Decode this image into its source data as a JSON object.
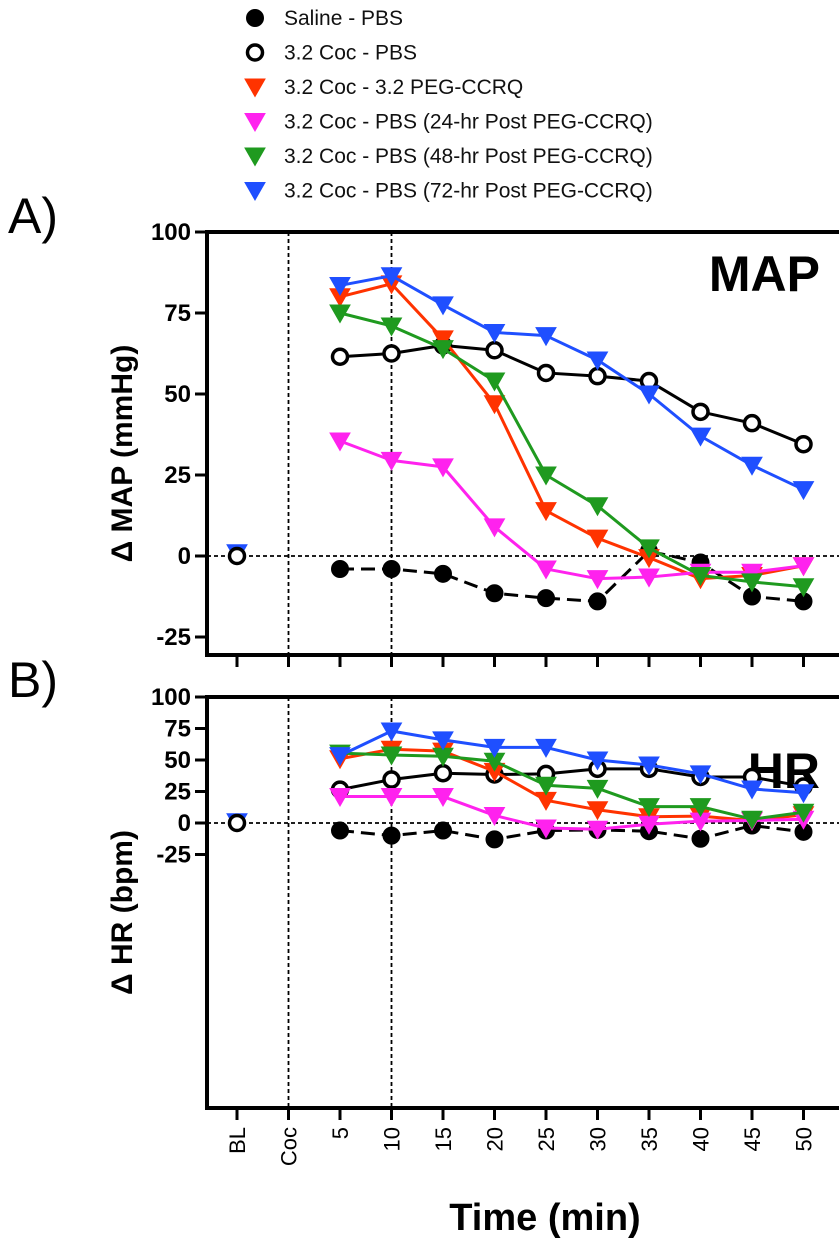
{
  "legend": [
    {
      "label": "Saline - PBS",
      "marker": "circle-filled",
      "color": "#000000"
    },
    {
      "label": "3.2 Coc - PBS",
      "marker": "circle-open",
      "color": "#000000"
    },
    {
      "label": "3.2 Coc - 3.2 PEG-CCRQ",
      "marker": "triangle-down",
      "color": "#ff3300"
    },
    {
      "label": "3.2 Coc - PBS (24-hr Post PEG-CCRQ)",
      "marker": "triangle-down",
      "color": "#ff22ee"
    },
    {
      "label": "3.2 Coc - PBS (48-hr Post PEG-CCRQ)",
      "marker": "triangle-down",
      "color": "#1f9a1f"
    },
    {
      "label": "3.2 Coc - PBS (72-hr Post PEG-CCRQ)",
      "marker": "triangle-down",
      "color": "#1f4fff"
    }
  ],
  "x_axis": {
    "title": "Time (min)",
    "tick_labels": [
      "BL",
      "Coc",
      "5",
      "10",
      "15",
      "20",
      "25",
      "30",
      "35",
      "40",
      "45",
      "50"
    ]
  },
  "chart_data": [
    {
      "type": "line",
      "panel_letter": "A)",
      "title": "MAP",
      "ylabel": "Δ MAP (mmHg)",
      "ylim": [
        -30,
        100
      ],
      "yticks": [
        -25,
        0,
        25,
        50,
        75,
        100
      ],
      "ytick_labels": [
        "-25",
        "0",
        "25",
        "50",
        "75",
        "100"
      ],
      "categories": [
        "BL",
        "Coc",
        "5",
        "10",
        "15",
        "20",
        "25",
        "30",
        "35",
        "40",
        "45",
        "50"
      ],
      "reference_lines": {
        "y": 0,
        "x": [
          "Coc",
          "10"
        ]
      },
      "baseline": {
        "open_circle": 0,
        "blue_triangle": 1
      },
      "series": [
        {
          "name": "Saline - PBS",
          "color": "#000000",
          "marker": "circle-filled",
          "dashed": true,
          "x": [
            "5",
            "10",
            "15",
            "20",
            "25",
            "30",
            "35",
            "40",
            "45",
            "50"
          ],
          "values": [
            -4,
            -4,
            -5.5,
            -11.5,
            -13,
            -14,
            1.5,
            -2,
            -12.5,
            -14
          ]
        },
        {
          "name": "3.2 Coc - PBS",
          "color": "#000000",
          "marker": "circle-open",
          "dashed": false,
          "x": [
            "5",
            "10",
            "15",
            "20",
            "25",
            "30",
            "35",
            "40",
            "45",
            "50"
          ],
          "values": [
            61.5,
            62.5,
            65,
            63.5,
            56.5,
            55.5,
            54,
            44.5,
            41,
            34.5
          ]
        },
        {
          "name": "3.2 Coc - 3.2 PEG-CCRQ",
          "color": "#ff3300",
          "marker": "triangle-down",
          "dashed": false,
          "x": [
            "5",
            "10",
            "15",
            "20",
            "25",
            "30",
            "35",
            "40",
            "45",
            "50"
          ],
          "values": [
            80,
            84,
            67,
            47,
            14,
            5.5,
            -0.5,
            -7,
            -6,
            -3
          ]
        },
        {
          "name": "3.2 Coc - PBS (24-hr Post PEG-CCRQ)",
          "color": "#ff22ee",
          "marker": "triangle-down",
          "dashed": false,
          "x": [
            "5",
            "10",
            "15",
            "20",
            "25",
            "30",
            "35",
            "40",
            "45",
            "50"
          ],
          "values": [
            35.5,
            29.5,
            27.5,
            9,
            -4,
            -7,
            -6.5,
            -5,
            -5,
            -3
          ]
        },
        {
          "name": "3.2 Coc - PBS (48-hr Post PEG-CCRQ)",
          "color": "#1f9a1f",
          "marker": "triangle-down",
          "dashed": false,
          "x": [
            "5",
            "10",
            "15",
            "20",
            "25",
            "30",
            "35",
            "40",
            "45",
            "50"
          ],
          "values": [
            75,
            71,
            64,
            54,
            25,
            15.5,
            2.5,
            -6,
            -8,
            -9.5
          ]
        },
        {
          "name": "3.2 Coc - PBS (72-hr Post PEG-CCRQ)",
          "color": "#1f4fff",
          "marker": "triangle-down",
          "dashed": false,
          "x": [
            "5",
            "10",
            "15",
            "20",
            "25",
            "30",
            "35",
            "40",
            "45",
            "50"
          ],
          "values": [
            83.5,
            86.5,
            77.5,
            69,
            68,
            60.5,
            50,
            37,
            28,
            20.5
          ]
        }
      ]
    },
    {
      "type": "line",
      "panel_letter": "B)",
      "title": "HR",
      "ylabel": "Δ HR (bpm)",
      "ylim": [
        -32,
        100
      ],
      "yticks": [
        -25,
        0,
        25,
        50,
        75,
        100
      ],
      "ytick_labels": [
        "-25",
        "0",
        "25",
        "50",
        "75",
        "100"
      ],
      "categories": [
        "BL",
        "Coc",
        "5",
        "10",
        "15",
        "20",
        "25",
        "30",
        "35",
        "40",
        "45",
        "50"
      ],
      "reference_lines": {
        "y": 0,
        "x": [
          "Coc",
          "10"
        ]
      },
      "baseline": {
        "open_circle": 0,
        "blue_triangle": 1
      },
      "series": [
        {
          "name": "Saline - PBS",
          "color": "#000000",
          "marker": "circle-filled",
          "dashed": true,
          "x": [
            "5",
            "10",
            "15",
            "20",
            "25",
            "30",
            "35",
            "40",
            "45",
            "50"
          ],
          "values": [
            -6,
            -10,
            -6,
            -13,
            -6,
            -5.5,
            -6.5,
            -12.5,
            -2,
            -7
          ]
        },
        {
          "name": "3.2 Coc - PBS",
          "color": "#000000",
          "marker": "circle-open",
          "dashed": false,
          "x": [
            "5",
            "10",
            "15",
            "20",
            "25",
            "30",
            "35",
            "40",
            "45",
            "50"
          ],
          "values": [
            26.5,
            34.5,
            39.5,
            38.5,
            39,
            43,
            43,
            36.5,
            36.5,
            29
          ]
        },
        {
          "name": "3.2 Coc - 3.2 PEG-CCRQ",
          "color": "#ff3300",
          "marker": "triangle-down",
          "dashed": false,
          "x": [
            "5",
            "10",
            "15",
            "20",
            "25",
            "30",
            "35",
            "40",
            "45",
            "50"
          ],
          "values": [
            51,
            58.5,
            57,
            41,
            18,
            10.5,
            5,
            5.5,
            2,
            6.5
          ]
        },
        {
          "name": "3.2 Coc - PBS (24-hr Post PEG-CCRQ)",
          "color": "#ff22ee",
          "marker": "triangle-down",
          "dashed": false,
          "x": [
            "5",
            "10",
            "15",
            "20",
            "25",
            "30",
            "35",
            "40",
            "45",
            "50"
          ],
          "values": [
            21,
            21,
            21,
            6,
            -4,
            -5,
            -1,
            1.5,
            2,
            3
          ]
        },
        {
          "name": "3.2 Coc - PBS (48-hr Post PEG-CCRQ)",
          "color": "#1f9a1f",
          "marker": "triangle-down",
          "dashed": false,
          "x": [
            "5",
            "10",
            "15",
            "20",
            "25",
            "30",
            "35",
            "40",
            "45",
            "50"
          ],
          "values": [
            55.5,
            54,
            53,
            49,
            30,
            27.5,
            13,
            13,
            3,
            8.5
          ]
        },
        {
          "name": "3.2 Coc - PBS (72-hr Post PEG-CCRQ)",
          "color": "#1f4fff",
          "marker": "triangle-down",
          "dashed": false,
          "x": [
            "5",
            "10",
            "15",
            "20",
            "25",
            "30",
            "35",
            "40",
            "45",
            "50"
          ],
          "values": [
            53.5,
            73,
            66,
            60,
            60,
            50,
            46,
            39,
            27,
            24
          ]
        }
      ]
    }
  ]
}
